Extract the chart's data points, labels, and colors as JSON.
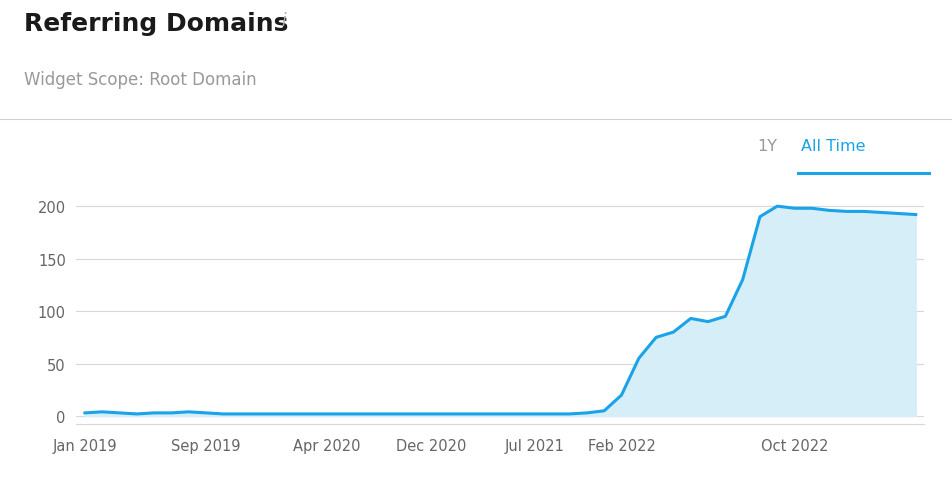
{
  "title": "Referring Domains",
  "title_info": "i",
  "subtitle": "Widget Scope: Root Domain",
  "title_fontsize": 18,
  "subtitle_fontsize": 12,
  "line_color": "#1aa3e8",
  "fill_color": "#d6eef8",
  "background_color": "#ffffff",
  "grid_color": "#d8d8d8",
  "yticks": [
    0,
    50,
    100,
    150,
    200
  ],
  "ylim": [
    -8,
    225
  ],
  "xtick_labels": [
    "Jan 2019",
    "Sep 2019",
    "Apr 2020",
    "Dec 2020",
    "Jul 2021",
    "Feb 2022",
    "Oct 2022"
  ],
  "time_points": [
    0,
    1,
    2,
    3,
    4,
    5,
    6,
    7,
    8,
    9,
    10,
    11,
    12,
    13,
    14,
    15,
    16,
    17,
    18,
    19,
    20,
    21,
    22,
    23,
    24,
    25,
    26,
    27,
    28,
    29,
    30,
    31,
    32,
    33,
    34,
    35,
    36,
    37,
    38,
    39,
    40,
    41,
    42,
    43,
    44,
    45,
    46,
    47,
    48
  ],
  "values": [
    3,
    4,
    3,
    2,
    3,
    3,
    4,
    3,
    2,
    2,
    2,
    2,
    2,
    2,
    2,
    2,
    2,
    2,
    2,
    2,
    2,
    2,
    2,
    2,
    2,
    2,
    2,
    2,
    2,
    3,
    5,
    20,
    55,
    75,
    80,
    93,
    90,
    95,
    130,
    190,
    200,
    198,
    198,
    196,
    195,
    195,
    194,
    193,
    192
  ],
  "xtick_positions": [
    0,
    7,
    14,
    20,
    26,
    31,
    41
  ],
  "tab_1y_label": "1Y",
  "tab_alltime_label": "All Time",
  "tab_color": "#1aa3e8",
  "tick_label_color": "#666666",
  "separator_color": "#d0d0d0",
  "xlim": [
    -0.5,
    48.5
  ]
}
